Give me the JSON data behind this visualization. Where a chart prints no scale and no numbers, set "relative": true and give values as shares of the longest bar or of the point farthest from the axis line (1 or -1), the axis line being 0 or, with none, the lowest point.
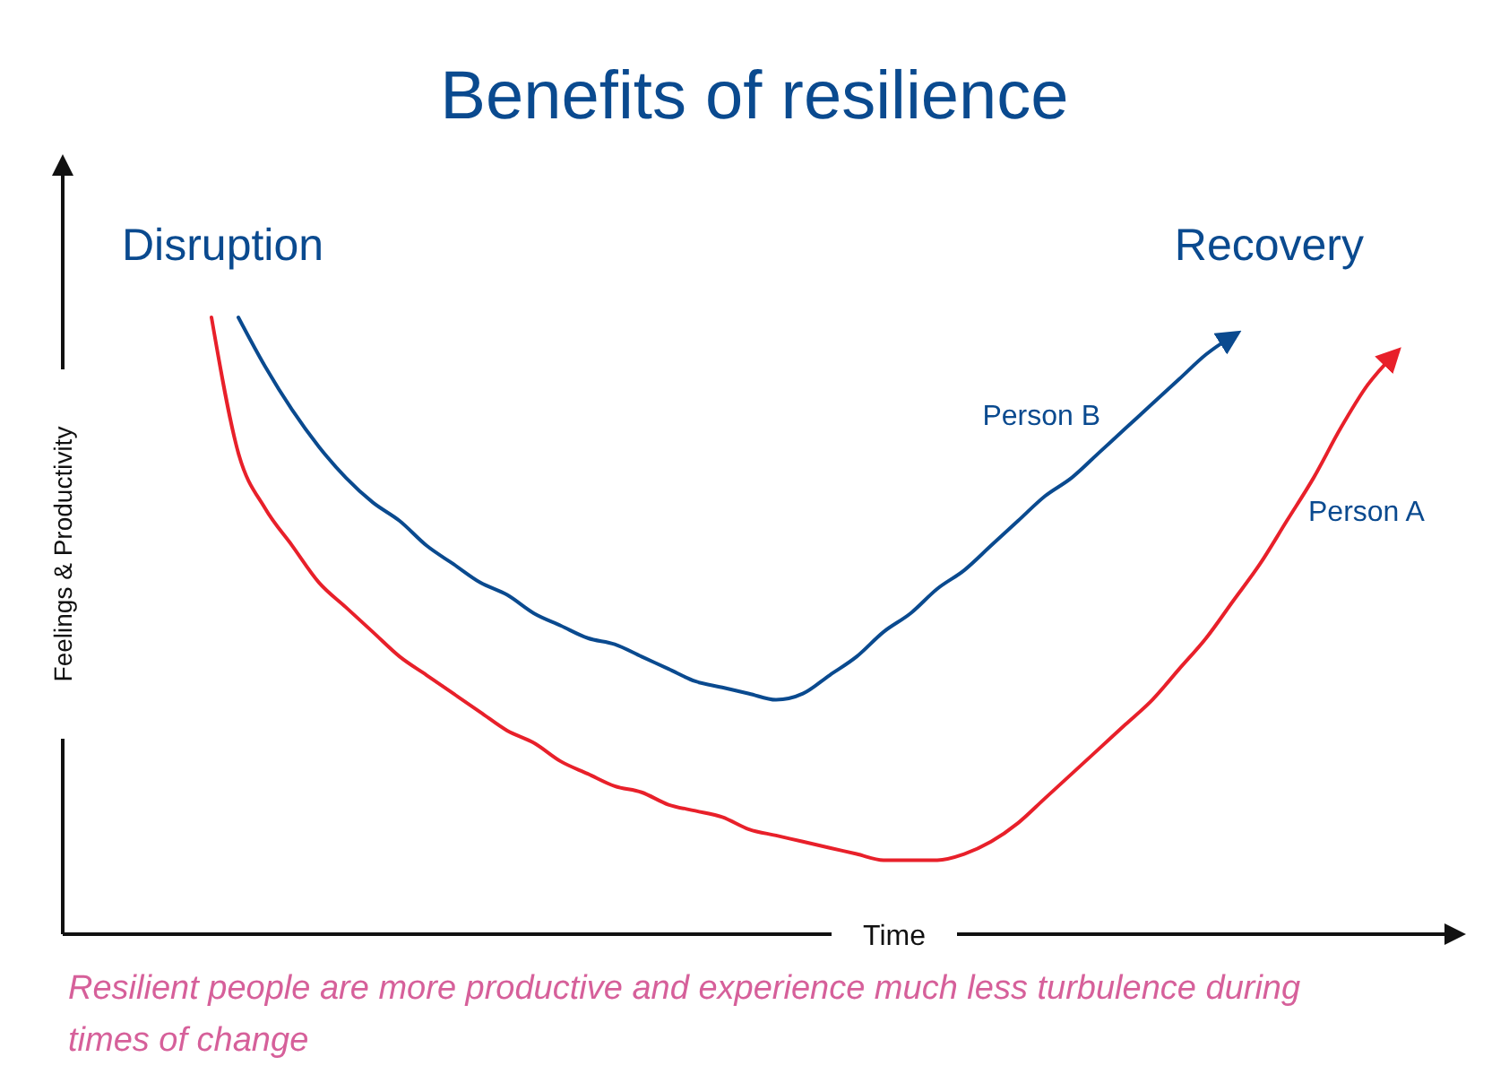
{
  "chart_data": {
    "type": "line",
    "title": "Benefits of resilience",
    "xlabel": "Time",
    "ylabel": "Feelings & Productivity",
    "relative": true,
    "categories": [
      null,
      null,
      null,
      null,
      null,
      null,
      null,
      null,
      null,
      null,
      null,
      null,
      null,
      null,
      null,
      null,
      null,
      null,
      null,
      null,
      null,
      null,
      null,
      null,
      null,
      null,
      null,
      null,
      null,
      null,
      null,
      null,
      null,
      null,
      null,
      null,
      null,
      null,
      null,
      null,
      null,
      null,
      null,
      null,
      null
    ],
    "series": [
      {
        "name": "Person A",
        "color": "#e8202a",
        "values": [
          1.0,
          0.78,
          0.69,
          0.63,
          0.57,
          0.53,
          0.49,
          0.45,
          0.42,
          0.39,
          0.36,
          0.33,
          0.31,
          0.28,
          0.26,
          0.24,
          0.23,
          0.21,
          0.2,
          0.19,
          0.17,
          0.16,
          0.15,
          0.14,
          0.13,
          0.12,
          0.12,
          0.12,
          0.13,
          0.15,
          0.18,
          0.22,
          0.26,
          0.3,
          0.34,
          0.38,
          0.43,
          0.48,
          0.54,
          0.6,
          0.67,
          0.74,
          0.82,
          0.89,
          0.94
        ]
      },
      {
        "name": "Person B",
        "color": "#0a4a8f",
        "values": [
          null,
          1.0,
          0.92,
          0.85,
          0.79,
          0.74,
          0.7,
          0.67,
          0.63,
          0.6,
          0.57,
          0.55,
          0.52,
          0.5,
          0.48,
          0.47,
          0.45,
          0.43,
          0.41,
          0.4,
          0.39,
          0.38,
          0.39,
          0.42,
          0.45,
          0.49,
          0.52,
          0.56,
          0.59,
          0.63,
          0.67,
          0.71,
          0.74,
          0.78,
          0.82,
          0.86,
          0.9,
          0.94,
          0.97,
          null,
          null,
          null,
          null,
          null,
          null
        ]
      }
    ],
    "annotations": [
      "Disruption",
      "Recovery",
      "Resilient people are more productive and experience much less turbulence during times of change"
    ]
  }
}
